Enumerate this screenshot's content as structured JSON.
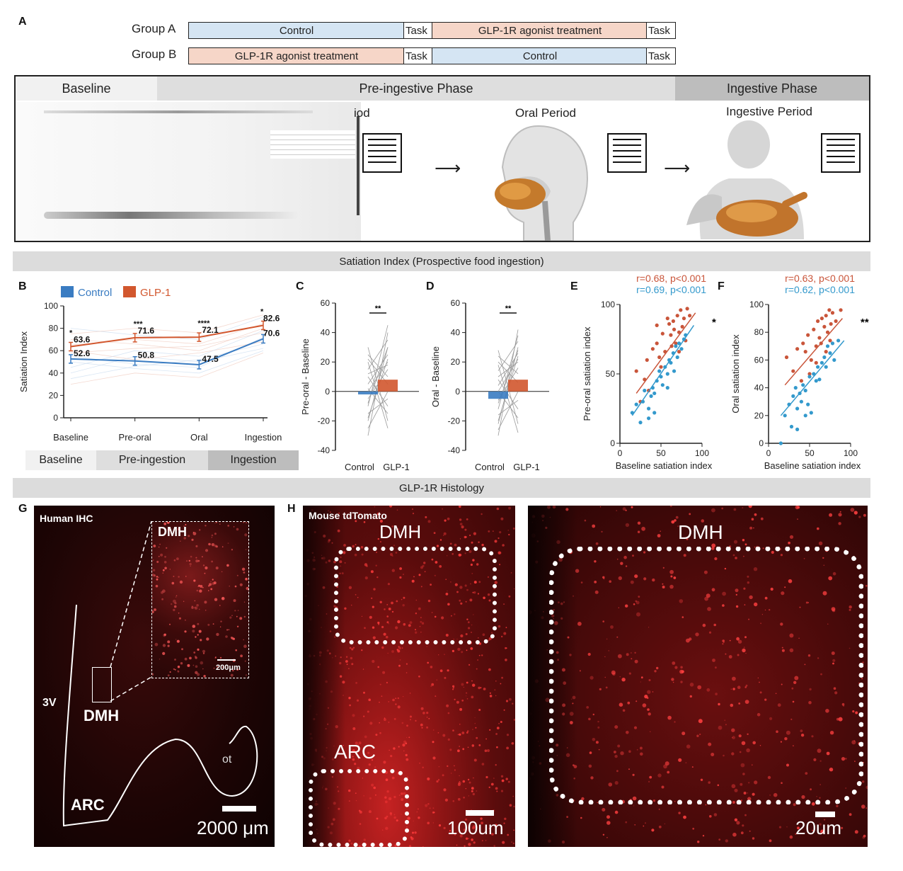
{
  "panelA": {
    "label": "A",
    "groupA": {
      "name": "Group A",
      "seg1": "Control",
      "task1": "Task",
      "seg2": "GLP-1R agonist treatment",
      "task2": "Task"
    },
    "groupB": {
      "name": "Group B",
      "seg1": "GLP-1R agonist treatment",
      "task1": "Task",
      "seg2": "Control",
      "task2": "Task"
    },
    "phases": {
      "baseline": "Baseline",
      "preingestive": "Pre-ingestive Phase",
      "ingestive": "Ingestive Phase"
    },
    "periods": {
      "cut": "iod",
      "oral": "Oral Period",
      "ingestive": "Ingestive Period"
    }
  },
  "section1": "Satiation Index (Prospective food ingestion)",
  "section2": "GLP-1R Histology",
  "panelB": {
    "label": "B",
    "bottom": [
      "Baseline",
      "Pre-ingestion",
      "Ingestion"
    ]
  },
  "panelC": {
    "label": "C"
  },
  "panelD": {
    "label": "D"
  },
  "panelE": {
    "label": "E"
  },
  "panelF": {
    "label": "F"
  },
  "panelG": {
    "label": "G",
    "title": "Human IHC",
    "dmh_inset": "DMH",
    "inset_scale": "200μm",
    "v3": "3V",
    "dmh": "DMH",
    "arc": "ARC",
    "ot": "ot",
    "scale": "2000 μm"
  },
  "panelH": {
    "label": "H",
    "title": "Mouse tdTomato",
    "dmh_left": "DMH",
    "arc": "ARC",
    "scale_left": "100um",
    "dmh_right": "DMH",
    "scale_right": "20um"
  },
  "colors": {
    "control": "#3a7cc2",
    "glp1": "#d2572e",
    "scatter_control": "#3399cc",
    "scatter_glp1": "#c9553a"
  },
  "chart_data": [
    {
      "type": "line",
      "id": "B",
      "categories": [
        "Baseline",
        "Pre-oral",
        "Oral",
        "Ingestion"
      ],
      "ylabel": "Satiation Index",
      "ylim": [
        0,
        100
      ],
      "yticks": [
        0,
        20,
        40,
        60,
        80,
        100
      ],
      "series": [
        {
          "name": "Control",
          "values": [
            52.6,
            50.8,
            47.5,
            70.6
          ]
        },
        {
          "name": "GLP-1",
          "values": [
            63.6,
            71.6,
            72.1,
            82.6
          ]
        }
      ],
      "significance": [
        "*",
        "***",
        "****",
        "*"
      ]
    },
    {
      "type": "bar",
      "id": "C",
      "categories": [
        "Control",
        "GLP-1"
      ],
      "values": [
        -2,
        8
      ],
      "ylabel": "Pre-oral - Baseline",
      "ylim": [
        -40,
        60
      ],
      "yticks": [
        -40,
        -20,
        0,
        20,
        40,
        60
      ],
      "significance": "**"
    },
    {
      "type": "bar",
      "id": "D",
      "categories": [
        "Control",
        "GLP-1"
      ],
      "values": [
        -5,
        8
      ],
      "ylabel": "Oral - Baseline",
      "ylim": [
        -40,
        60
      ],
      "yticks": [
        -40,
        -20,
        0,
        20,
        40,
        60
      ],
      "significance": "**"
    },
    {
      "type": "scatter",
      "id": "E",
      "xlabel": "Baseline satiation index",
      "ylabel": "Pre-oral satiation index",
      "xlim": [
        0,
        100
      ],
      "ylim": [
        0,
        100
      ],
      "xticks": [
        0,
        50,
        100
      ],
      "yticks": [
        0,
        50,
        100
      ],
      "annotations": [
        "r=0.68, p<0.001",
        "r=0.69, p<0.001"
      ],
      "significance": "*",
      "series": [
        {
          "values": [
            [
              20,
              52
            ],
            [
              30,
              46
            ],
            [
              33,
              60
            ],
            [
              40,
              68
            ],
            [
              45,
              72
            ],
            [
              48,
              62
            ],
            [
              52,
              79
            ],
            [
              55,
              66
            ],
            [
              60,
              86
            ],
            [
              62,
              78
            ],
            [
              65,
              88
            ],
            [
              68,
              72
            ],
            [
              70,
              92
            ],
            [
              72,
              80
            ],
            [
              74,
              96
            ],
            [
              76,
              84
            ],
            [
              78,
              90
            ],
            [
              80,
              74
            ],
            [
              82,
              97
            ],
            [
              85,
              92
            ],
            [
              45,
              85
            ],
            [
              58,
              90
            ],
            [
              35,
              38
            ],
            [
              25,
              30
            ],
            [
              50,
              55
            ],
            [
              63,
              70
            ],
            [
              72,
              66
            ],
            [
              66,
              82
            ]
          ],
          "trend": [
            [
              20,
              36
            ],
            [
              92,
              94
            ]
          ]
        },
        {
          "values": [
            [
              15,
              22
            ],
            [
              20,
              28
            ],
            [
              25,
              15
            ],
            [
              28,
              30
            ],
            [
              30,
              38
            ],
            [
              35,
              25
            ],
            [
              38,
              34
            ],
            [
              40,
              40
            ],
            [
              42,
              36
            ],
            [
              45,
              45
            ],
            [
              48,
              52
            ],
            [
              50,
              48
            ],
            [
              52,
              42
            ],
            [
              55,
              55
            ],
            [
              58,
              50
            ],
            [
              60,
              60
            ],
            [
              62,
              58
            ],
            [
              65,
              65
            ],
            [
              68,
              70
            ],
            [
              70,
              62
            ],
            [
              72,
              72
            ],
            [
              75,
              68
            ],
            [
              78,
              75
            ],
            [
              80,
              78
            ],
            [
              35,
              18
            ],
            [
              42,
              22
            ],
            [
              58,
              40
            ],
            [
              66,
              52
            ]
          ],
          "trend": [
            [
              15,
              20
            ],
            [
              90,
              85
            ]
          ]
        }
      ]
    },
    {
      "type": "scatter",
      "id": "F",
      "xlabel": "Baseline satiation index",
      "ylabel": "Oral satiation index",
      "xlim": [
        0,
        100
      ],
      "ylim": [
        0,
        100
      ],
      "xticks": [
        0,
        50,
        100
      ],
      "yticks": [
        0,
        20,
        40,
        60,
        80,
        100
      ],
      "annotations": [
        "r=0.63, p<0.001",
        "r=0.62, p<0.001"
      ],
      "significance": "**",
      "series": [
        {
          "values": [
            [
              22,
              62
            ],
            [
              30,
              52
            ],
            [
              35,
              68
            ],
            [
              42,
              72
            ],
            [
              45,
              66
            ],
            [
              48,
              78
            ],
            [
              52,
              60
            ],
            [
              55,
              82
            ],
            [
              58,
              70
            ],
            [
              60,
              88
            ],
            [
              62,
              76
            ],
            [
              65,
              90
            ],
            [
              68,
              84
            ],
            [
              70,
              92
            ],
            [
              72,
              80
            ],
            [
              74,
              96
            ],
            [
              76,
              86
            ],
            [
              78,
              94
            ],
            [
              82,
              88
            ],
            [
              88,
              96
            ],
            [
              40,
              45
            ],
            [
              50,
              50
            ],
            [
              64,
              72
            ],
            [
              70,
              66
            ],
            [
              58,
              58
            ],
            [
              75,
              74
            ]
          ],
          "trend": [
            [
              20,
              42
            ],
            [
              90,
              90
            ]
          ]
        },
        {
          "values": [
            [
              15,
              0
            ],
            [
              20,
              20
            ],
            [
              25,
              28
            ],
            [
              28,
              12
            ],
            [
              30,
              34
            ],
            [
              33,
              40
            ],
            [
              35,
              10
            ],
            [
              38,
              36
            ],
            [
              40,
              30
            ],
            [
              42,
              42
            ],
            [
              45,
              38
            ],
            [
              48,
              28
            ],
            [
              50,
              48
            ],
            [
              52,
              22
            ],
            [
              55,
              50
            ],
            [
              58,
              45
            ],
            [
              60,
              55
            ],
            [
              62,
              46
            ],
            [
              65,
              58
            ],
            [
              68,
              62
            ],
            [
              70,
              55
            ],
            [
              72,
              70
            ],
            [
              75,
              65
            ],
            [
              78,
              72
            ],
            [
              80,
              60
            ],
            [
              85,
              74
            ],
            [
              45,
              20
            ],
            [
              35,
              25
            ]
          ],
          "trend": [
            [
              15,
              20
            ],
            [
              92,
              74
            ]
          ]
        }
      ]
    }
  ]
}
